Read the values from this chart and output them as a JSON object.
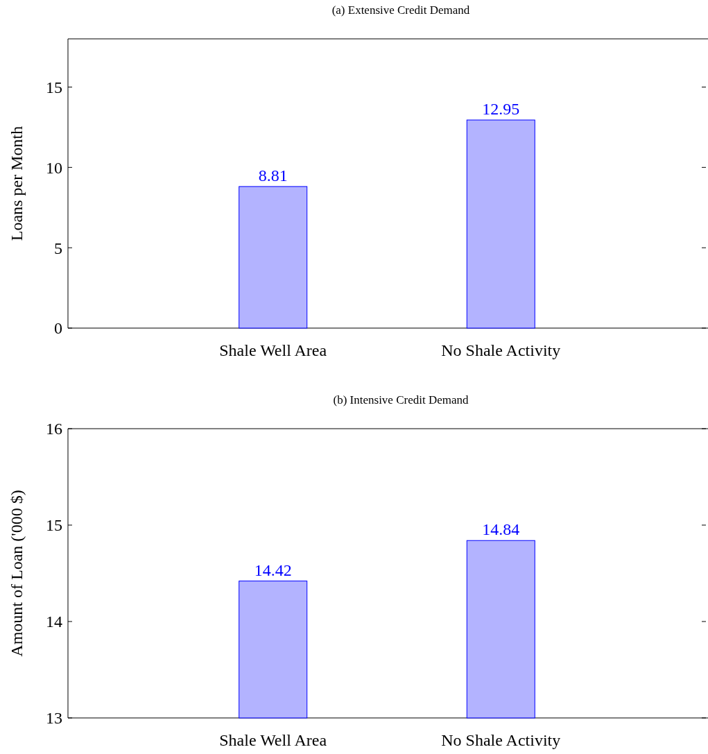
{
  "chart_data": [
    {
      "type": "bar",
      "title": "(a) Extensive Credit Demand",
      "ylabel": "Loans per Month",
      "categories": [
        "Shale Well Area",
        "No Shale Activity"
      ],
      "values": [
        8.81,
        12.95
      ],
      "color": "#b3b3ff",
      "ylim": [
        0,
        18
      ],
      "yticks": [
        0,
        5,
        10,
        15
      ],
      "data_labels": true
    },
    {
      "type": "bar",
      "title": "(b) Intensive Credit Demand",
      "ylabel": "Amount of Loan ('000 $)",
      "categories": [
        "Shale Well Area",
        "No Shale Activity"
      ],
      "values": [
        14.42,
        14.84
      ],
      "color": "#b3b3ff",
      "ylim": [
        13,
        16
      ],
      "yticks": [
        13,
        14,
        15,
        16
      ],
      "data_labels": true
    }
  ]
}
